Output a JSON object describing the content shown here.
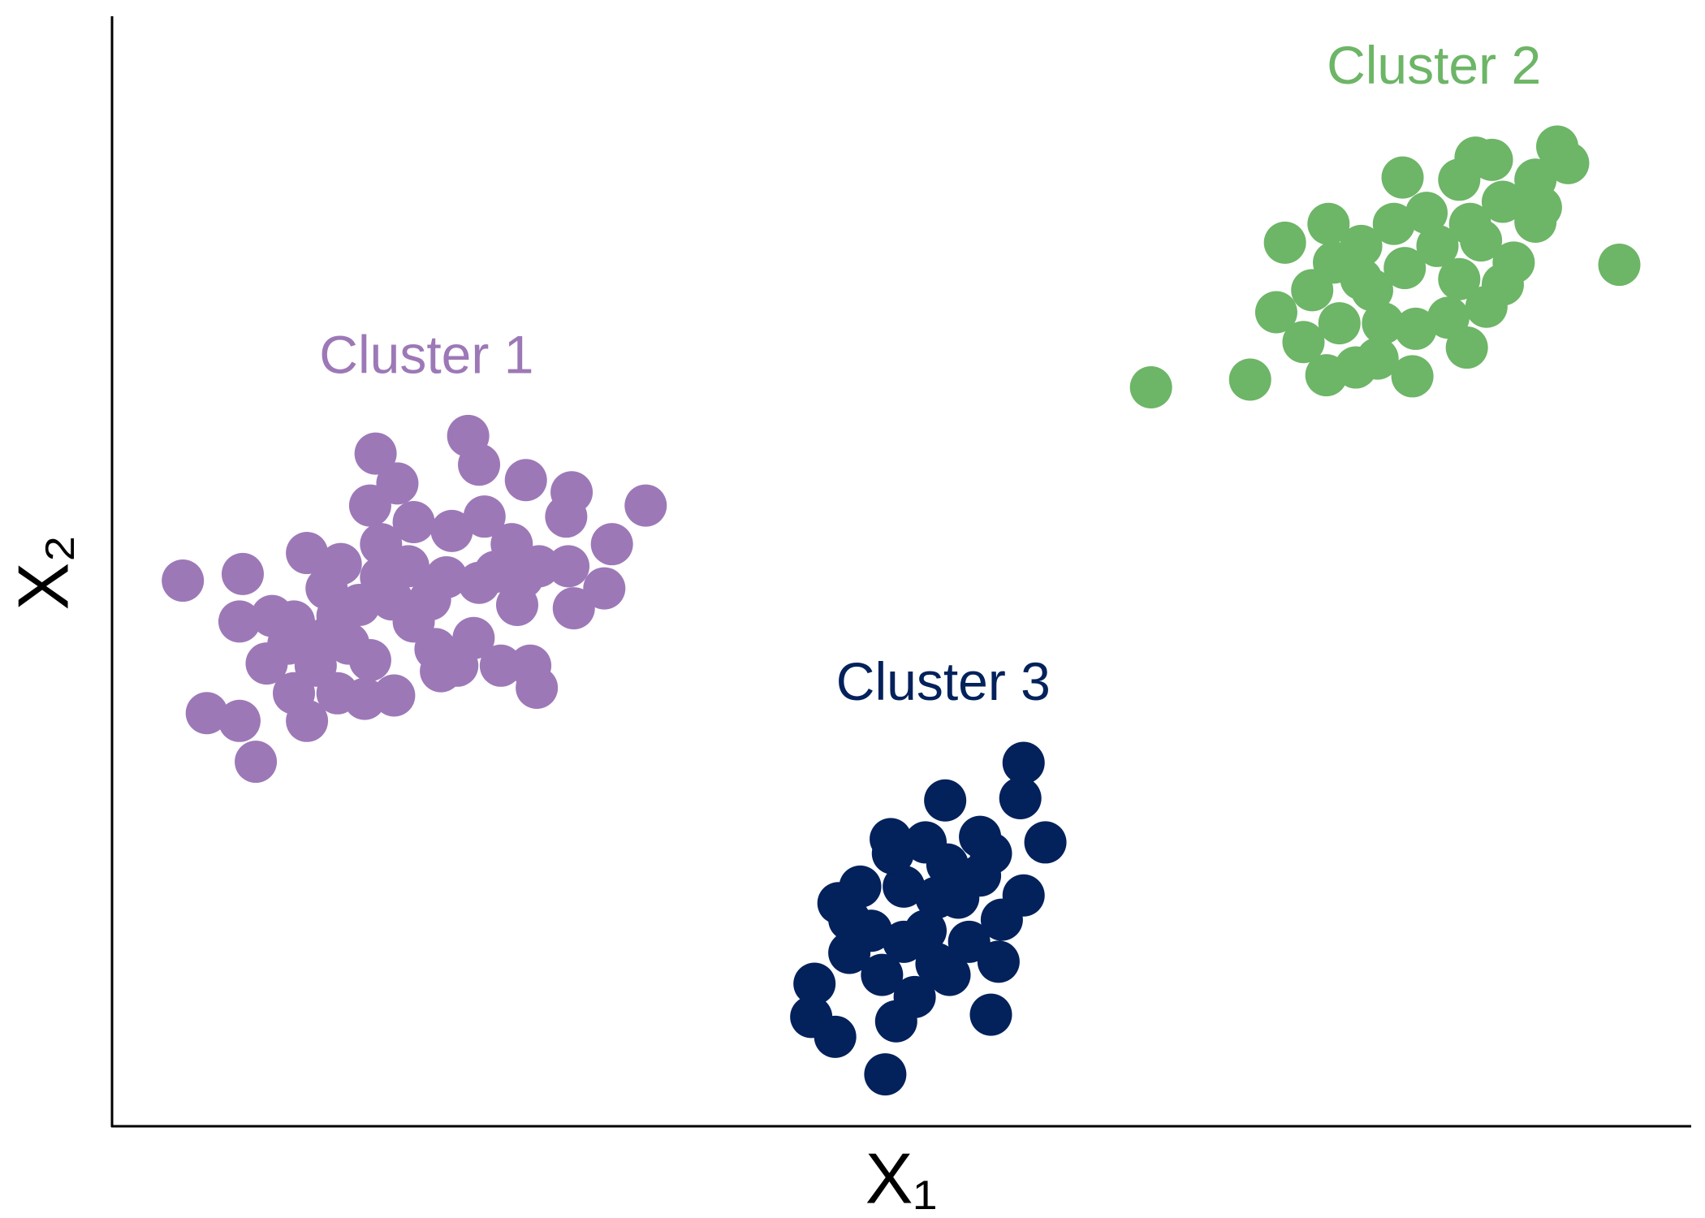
{
  "chart_data": {
    "type": "scatter",
    "x_label": "X₁",
    "y_label": "X₂",
    "xlim": [
      0,
      1450
    ],
    "ylim": [
      0,
      1005
    ],
    "series": [
      {
        "name": "Cluster 1",
        "color": "#9d78b7",
        "x": [
          65,
          120,
          117,
          142,
          87,
          117,
          132,
          179,
          167,
          179,
          210,
          207,
          242,
          262,
          237,
          327,
          337,
          380,
          422,
          417,
          490,
          459,
          452,
          424,
          419,
          392,
          367,
          372,
          352,
          312,
          342,
          277,
          272,
          257,
          227,
          197,
          162,
          147,
          237,
          207,
          232,
          259,
          302,
          317,
          332,
          297,
          357,
          384,
          390,
          292,
          247,
          307,
          167,
          187,
          217,
          277,
          337,
          377,
          197,
          247
        ],
        "y": [
          494,
          500,
          457,
          419,
          374,
          367,
          330,
          367,
          392,
          519,
          509,
          462,
          609,
          582,
          562,
          625,
          599,
          585,
          574,
          552,
          562,
          527,
          487,
          469,
          507,
          507,
          527,
          472,
          502,
          539,
          552,
          547,
          507,
          477,
          472,
          442,
          437,
          462,
          422,
          392,
          387,
          390,
          412,
          417,
          442,
          432,
          417,
          417,
          397,
          477,
          497,
          497,
          457,
          417,
          437,
          457,
          492,
          497,
          487,
          527
        ]
      },
      {
        "name": "Cluster 2",
        "color": "#6db567",
        "x": [
          954,
          1045,
          1069,
          1077,
          1094,
          1115,
          1142,
          1162,
          1194,
          1244,
          1117,
          1102,
          1122,
          1147,
          1185,
          1237,
          1267,
          1327,
          1337,
          1307,
          1312,
          1307,
          1287,
          1262,
          1277,
          1227,
          1197,
          1167,
          1127,
          1157,
          1187,
          1217,
          1247,
          1277,
          1207,
          1177,
          1147,
          1237,
          1257,
          1384,
          1252
        ],
        "y": [
          669,
          676,
          737,
          800,
          710,
          680,
          687,
          695,
          679,
          705,
          817,
          757,
          782,
          797,
          859,
          857,
          875,
          887,
          872,
          857,
          832,
          819,
          782,
          742,
          762,
          732,
          722,
          727,
          727,
          757,
          777,
          797,
          817,
          837,
          827,
          817,
          767,
          767,
          802,
          780,
          877
        ]
      },
      {
        "name": "Cluster 3",
        "color": "#03215b",
        "x": [
          710,
          664,
          642,
          645,
          720,
          807,
          814,
          769,
          667,
          687,
          715,
          765,
          837,
          834,
          857,
          837,
          797,
          747,
          727,
          697,
          747,
          777,
          797,
          817,
          757,
          707,
          677,
          737,
          767,
          807,
          787,
          727,
          677,
          757,
          717
        ],
        "y": [
          47,
          81,
          99,
          129,
          95,
          101,
          149,
          137,
          202,
          217,
          260,
          295,
          329,
          297,
          257,
          209,
          262,
          257,
          217,
          177,
          177,
          207,
          227,
          187,
          147,
          137,
          157,
          117,
          237,
          247,
          167,
          167,
          187,
          207,
          247
        ]
      }
    ]
  }
}
